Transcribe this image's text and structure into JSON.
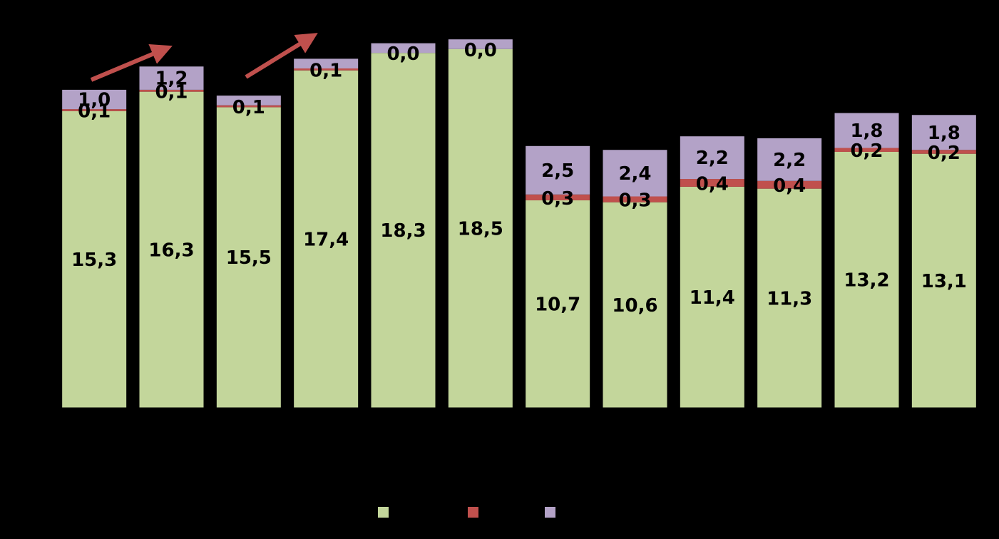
{
  "chart_data": {
    "type": "bar",
    "stacked": true,
    "categories": [
      "",
      "",
      "",
      "",
      "",
      "",
      "",
      "",
      "",
      "",
      "",
      ""
    ],
    "groups": [
      "",
      "",
      "",
      "",
      "",
      ""
    ],
    "series": [
      {
        "color": "#c3d69b",
        "values": [
          15.3,
          16.3,
          15.5,
          17.4,
          18.3,
          18.5,
          10.7,
          10.6,
          11.4,
          11.3,
          13.2,
          13.1
        ],
        "labels": [
          "15,3",
          "16,3",
          "15,5",
          "17,4",
          "18,3",
          "18,5",
          "10,7",
          "10,6",
          "11,4",
          "11,3",
          "13,2",
          "13,1"
        ]
      },
      {
        "color": "#c0504d",
        "values": [
          0.1,
          0.1,
          0.1,
          0.1,
          0.0,
          0.0,
          0.3,
          0.3,
          0.4,
          0.4,
          0.2,
          0.2
        ],
        "labels": [
          "0,1",
          "0,1",
          "0,1",
          "0,1",
          "0,0",
          "0,0",
          "0,3",
          "0,3",
          "0,4",
          "0,4",
          "0,2",
          "0,2"
        ]
      },
      {
        "color": "#b3a2c7",
        "values": [
          1.0,
          1.2,
          0.5,
          0.5,
          0.5,
          0.5,
          2.5,
          2.4,
          2.2,
          2.2,
          1.8,
          1.8
        ],
        "labels": [
          "1,0",
          "1,2",
          "",
          "",
          "",
          "",
          "2,5",
          "2,4",
          "2,2",
          "2,2",
          "1,8",
          "1,8"
        ]
      }
    ],
    "ylim": [
      0,
      20
    ],
    "gridlines": true,
    "legend_position": "bottom",
    "annotations": [
      {
        "type": "arrow",
        "color": "#c0504d",
        "from_bar": 0,
        "to_bar": 1
      },
      {
        "type": "arrow",
        "color": "#c0504d",
        "from_bar": 2,
        "to_bar": 3
      }
    ]
  }
}
